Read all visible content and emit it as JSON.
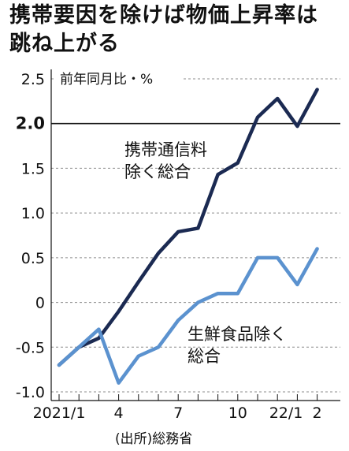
{
  "headline": {
    "line1": "携帯要因を除けば物価上昇率は",
    "line2": "跳ね上がる"
  },
  "source": "(出所)総務省",
  "chart_data": {
    "type": "line",
    "unit_label": "前年同月比・%",
    "x_tick_labels": [
      "2021/1",
      "4",
      "7",
      "10",
      "22/1",
      "2"
    ],
    "y_ticks": [
      "2.5",
      "2.0",
      "1.5",
      "1.0",
      "0.5",
      "0",
      "-0.5",
      "-1.0"
    ],
    "ylim": [
      -1.0,
      2.5
    ],
    "highlight_line": 2.0,
    "grid": "dashed horizontal",
    "x": [
      "2021/1",
      "2021/2",
      "2021/3",
      "2021/4",
      "2021/5",
      "2021/6",
      "2021/7",
      "2021/8",
      "2021/9",
      "2021/10",
      "2021/11",
      "2021/12",
      "2022/1",
      "2022/2"
    ],
    "series": [
      {
        "name": "携帯通信料\n除く総合",
        "color": "#1b2a52",
        "values": [
          -0.7,
          -0.5,
          -0.4,
          -0.1,
          0.23,
          0.55,
          0.79,
          0.83,
          1.43,
          1.56,
          2.07,
          2.28,
          1.97,
          2.38
        ]
      },
      {
        "name": "生鮮食品除く\n総合",
        "color": "#5b92cf",
        "values": [
          -0.7,
          -0.5,
          -0.3,
          -0.9,
          -0.6,
          -0.5,
          -0.2,
          0.0,
          0.1,
          0.1,
          0.5,
          0.5,
          0.2,
          0.6
        ]
      }
    ]
  }
}
